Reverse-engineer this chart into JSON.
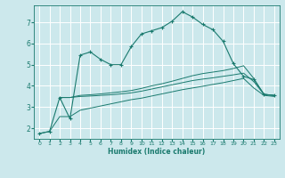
{
  "bg_color": "#cce8ec",
  "line_color": "#1a7a6e",
  "grid_color": "#b0d4d8",
  "xlabel": "Humidex (Indice chaleur)",
  "xlim": [
    -0.5,
    23.5
  ],
  "ylim": [
    1.5,
    7.8
  ],
  "yticks": [
    2,
    3,
    4,
    5,
    6,
    7
  ],
  "xticks": [
    0,
    1,
    2,
    3,
    4,
    5,
    6,
    7,
    8,
    9,
    10,
    11,
    12,
    13,
    14,
    15,
    16,
    17,
    18,
    19,
    20,
    21,
    22,
    23
  ],
  "curve1_x": [
    0,
    1,
    2,
    3,
    4,
    5,
    6,
    7,
    8,
    9,
    10,
    11,
    12,
    13,
    14,
    15,
    16,
    17,
    18,
    19,
    20,
    21,
    22,
    23
  ],
  "curve1_y": [
    1.75,
    1.85,
    3.45,
    2.45,
    5.45,
    5.6,
    5.25,
    5.0,
    5.0,
    5.85,
    6.45,
    6.6,
    6.75,
    7.05,
    7.5,
    7.25,
    6.9,
    6.65,
    6.1,
    5.05,
    4.45,
    4.3,
    3.6,
    3.55
  ],
  "curve2_x": [
    2,
    3,
    4,
    5,
    6,
    7,
    8,
    9,
    10,
    11,
    12,
    13,
    14,
    15,
    16,
    17,
    18,
    19,
    20,
    21,
    22,
    23
  ],
  "curve2_y": [
    3.45,
    3.45,
    3.55,
    3.58,
    3.62,
    3.67,
    3.72,
    3.78,
    3.88,
    4.0,
    4.1,
    4.22,
    4.35,
    4.48,
    4.58,
    4.65,
    4.72,
    4.82,
    4.95,
    4.35,
    3.6,
    3.55
  ],
  "curve3_x": [
    2,
    3,
    4,
    5,
    6,
    7,
    8,
    9,
    10,
    11,
    12,
    13,
    14,
    15,
    16,
    17,
    18,
    19,
    20,
    21,
    22,
    23
  ],
  "curve3_y": [
    3.45,
    3.45,
    3.5,
    3.52,
    3.55,
    3.58,
    3.62,
    3.67,
    3.75,
    3.85,
    3.95,
    4.05,
    4.15,
    4.25,
    4.32,
    4.38,
    4.45,
    4.52,
    4.6,
    4.2,
    3.6,
    3.55
  ],
  "curve4_x": [
    0,
    1,
    2,
    3,
    4,
    5,
    6,
    7,
    8,
    9,
    10,
    11,
    12,
    13,
    14,
    15,
    16,
    17,
    18,
    19,
    20,
    21,
    22,
    23
  ],
  "curve4_y": [
    1.75,
    1.85,
    2.55,
    2.55,
    2.85,
    2.95,
    3.05,
    3.15,
    3.25,
    3.35,
    3.42,
    3.52,
    3.62,
    3.72,
    3.82,
    3.9,
    3.98,
    4.07,
    4.15,
    4.25,
    4.35,
    3.9,
    3.55,
    3.5
  ]
}
